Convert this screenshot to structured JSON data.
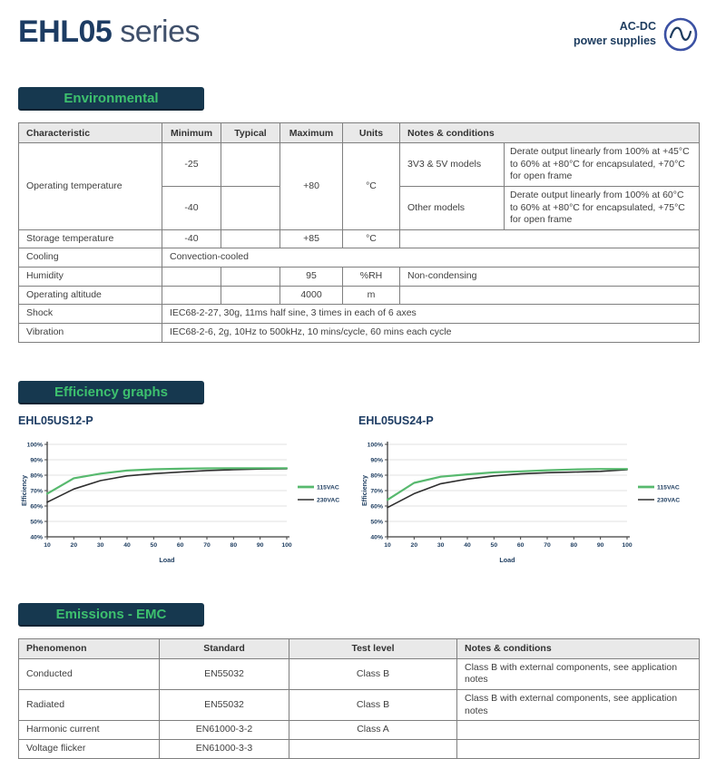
{
  "header": {
    "title_bold": "EHL05",
    "title_light": "series",
    "brand_line1": "AC-DC",
    "brand_line2": "power supplies"
  },
  "colors": {
    "navy": "#1d3c5f",
    "badge_bg": "#16384f",
    "badge_green": "#3dc06e",
    "chart_green": "#57b96e",
    "chart_black": "#2e2e2e",
    "logo_blue": "#3b51a3",
    "grid": "#d9d9d9"
  },
  "sections": {
    "environmental": "Environmental",
    "efficiency": "Efficiency graphs",
    "emissions": "Emissions - EMC"
  },
  "env_table": {
    "headers": {
      "characteristic": "Characteristic",
      "minimum": "Minimum",
      "typical": "Typical",
      "maximum": "Maximum",
      "units": "Units",
      "notes": "Notes & conditions"
    },
    "op_temp": {
      "name": "Operating temperature",
      "min1": "-25",
      "min2": "-40",
      "max": "+80",
      "units": "°C",
      "note1_label": "3V3 & 5V models",
      "note1_text": "Derate output linearly from 100% at +45°C to 60% at +80°C for encapsulated, +70°C for open frame",
      "note2_label": "Other models",
      "note2_text": "Derate output linearly from 100% at 60°C to 60% at +80°C for encapsulated, +75°C for open frame"
    },
    "storage": {
      "name": "Storage temperature",
      "min": "-40",
      "max": "+85",
      "units": "°C"
    },
    "cooling": {
      "name": "Cooling",
      "value": "Convection-cooled"
    },
    "humidity": {
      "name": "Humidity",
      "max": "95",
      "units": "%RH",
      "notes": "Non-condensing"
    },
    "altitude": {
      "name": "Operating altitude",
      "max": "4000",
      "units": "m"
    },
    "shock": {
      "name": "Shock",
      "value": "IEC68-2-27, 30g, 11ms half sine, 3 times in each of 6 axes"
    },
    "vibration": {
      "name": "Vibration",
      "value": "IEC68-2-6, 2g, 10Hz to 500kHz, 10 mins/cycle, 60 mins each cycle"
    }
  },
  "chart_data": [
    {
      "type": "line",
      "title": "EHL05US12-P",
      "xlabel": "Load",
      "ylabel": "Efficiency",
      "x": [
        10,
        20,
        30,
        40,
        50,
        60,
        70,
        80,
        90,
        100
      ],
      "xlim": [
        10,
        100
      ],
      "ylim": [
        40,
        100
      ],
      "xticks": [
        10,
        20,
        30,
        40,
        50,
        60,
        70,
        80,
        90,
        100
      ],
      "yticks": [
        40,
        50,
        60,
        70,
        80,
        90,
        100
      ],
      "ytick_suffix": "%",
      "grid": true,
      "legend_position": "right",
      "series": [
        {
          "name": "115VAC",
          "color": "#57b96e",
          "values": [
            68,
            78,
            81,
            83,
            83.8,
            84.2,
            84.4,
            84.5,
            84.5,
            84.5
          ]
        },
        {
          "name": "230VAC",
          "color": "#2e2e2e",
          "values": [
            62.5,
            71,
            76.5,
            79.5,
            81,
            82,
            83,
            83.5,
            84,
            84.2
          ]
        }
      ]
    },
    {
      "type": "line",
      "title": "EHL05US24-P",
      "xlabel": "Load",
      "ylabel": "Efficiency",
      "x": [
        10,
        20,
        30,
        40,
        50,
        60,
        70,
        80,
        90,
        100
      ],
      "xlim": [
        10,
        100
      ],
      "ylim": [
        40,
        100
      ],
      "xticks": [
        10,
        20,
        30,
        40,
        50,
        60,
        70,
        80,
        90,
        100
      ],
      "yticks": [
        40,
        50,
        60,
        70,
        80,
        90,
        100
      ],
      "ytick_suffix": "%",
      "grid": true,
      "legend_position": "right",
      "series": [
        {
          "name": "115VAC",
          "color": "#57b96e",
          "values": [
            64,
            75,
            79,
            80.5,
            81.8,
            82.5,
            83.2,
            83.7,
            84,
            84
          ]
        },
        {
          "name": "230VAC",
          "color": "#2e2e2e",
          "values": [
            59,
            68,
            74.5,
            77.5,
            79.5,
            80.8,
            81.6,
            82,
            82.5,
            83.5
          ]
        }
      ]
    }
  ],
  "emc_table": {
    "headers": {
      "phenomenon": "Phenomenon",
      "standard": "Standard",
      "test_level": "Test level",
      "notes": "Notes & conditions"
    },
    "rows": [
      {
        "phenomenon": "Conducted",
        "standard": "EN55032",
        "test_level": "Class B",
        "notes": "Class B with external components, see application notes"
      },
      {
        "phenomenon": "Radiated",
        "standard": "EN55032",
        "test_level": "Class B",
        "notes": "Class B with external components, see application notes"
      },
      {
        "phenomenon": "Harmonic current",
        "standard": "EN61000-3-2",
        "test_level": "Class A",
        "notes": ""
      },
      {
        "phenomenon": "Voltage flicker",
        "standard": "EN61000-3-3",
        "test_level": "",
        "notes": ""
      }
    ]
  }
}
